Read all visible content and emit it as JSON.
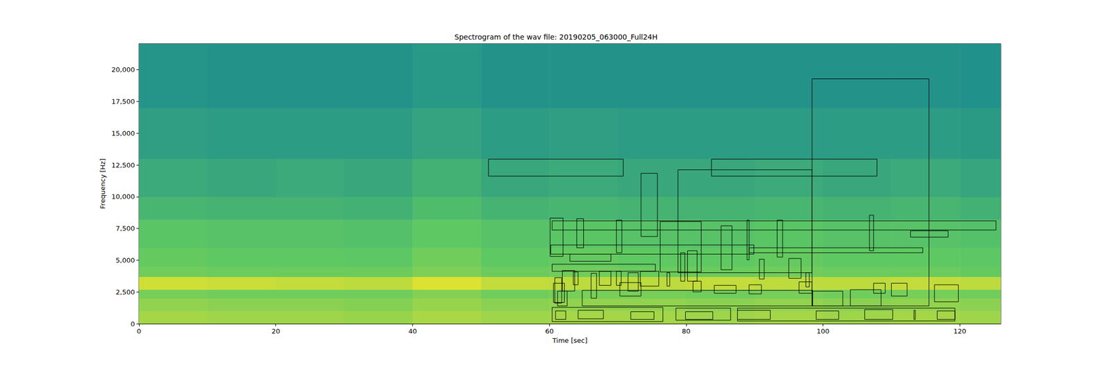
{
  "chart_data": {
    "type": "spectrogram",
    "title": "Spectrogram of the wav file: 20190205_063000_Full24H",
    "x_label": "Time [sec]",
    "y_label": "Frequency [Hz]",
    "xlim": [
      0,
      126
    ],
    "xticks": [
      0,
      20,
      40,
      60,
      80,
      100,
      120
    ],
    "ylim": [
      0,
      22050
    ],
    "yticks": [
      0,
      2500,
      5000,
      7500,
      10000,
      12500,
      15000,
      17500,
      20000
    ],
    "grid": false,
    "spectrogram": {
      "time_edges": [
        0,
        10,
        20,
        30,
        40,
        50,
        60,
        70,
        80,
        90,
        100,
        110,
        120,
        126
      ],
      "freq_edges": [
        0,
        1000,
        2000,
        2700,
        3700,
        4500,
        6000,
        8200,
        10000,
        13000,
        17000,
        22050
      ],
      "level_range": [
        0,
        1
      ],
      "levels": [
        [
          0.86,
          0.85,
          0.85,
          0.84,
          0.87,
          0.85,
          0.86,
          0.86,
          0.85,
          0.86,
          0.85,
          0.86,
          0.85
        ],
        [
          0.83,
          0.82,
          0.82,
          0.81,
          0.84,
          0.82,
          0.83,
          0.83,
          0.82,
          0.83,
          0.82,
          0.83,
          0.82
        ],
        [
          0.79,
          0.78,
          0.78,
          0.78,
          0.81,
          0.78,
          0.79,
          0.79,
          0.78,
          0.79,
          0.78,
          0.79,
          0.78
        ],
        [
          0.93,
          0.92,
          0.91,
          0.9,
          0.95,
          0.91,
          0.9,
          0.9,
          0.91,
          0.9,
          0.9,
          0.91,
          0.9
        ],
        [
          0.78,
          0.77,
          0.77,
          0.77,
          0.8,
          0.77,
          0.78,
          0.77,
          0.77,
          0.78,
          0.77,
          0.77,
          0.76
        ],
        [
          0.76,
          0.75,
          0.75,
          0.74,
          0.78,
          0.75,
          0.76,
          0.75,
          0.75,
          0.76,
          0.75,
          0.75,
          0.74
        ],
        [
          0.73,
          0.72,
          0.72,
          0.71,
          0.75,
          0.72,
          0.73,
          0.72,
          0.72,
          0.73,
          0.72,
          0.72,
          0.71
        ],
        [
          0.66,
          0.65,
          0.65,
          0.64,
          0.69,
          0.65,
          0.66,
          0.65,
          0.65,
          0.66,
          0.65,
          0.66,
          0.64
        ],
        [
          0.61,
          0.6,
          0.61,
          0.6,
          0.64,
          0.6,
          0.61,
          0.6,
          0.6,
          0.61,
          0.6,
          0.61,
          0.59
        ],
        [
          0.56,
          0.55,
          0.55,
          0.55,
          0.58,
          0.55,
          0.56,
          0.55,
          0.55,
          0.55,
          0.55,
          0.55,
          0.54
        ],
        [
          0.52,
          0.51,
          0.51,
          0.51,
          0.53,
          0.51,
          0.51,
          0.51,
          0.51,
          0.51,
          0.51,
          0.51,
          0.5
        ]
      ]
    },
    "boxes": [
      [
        51.1,
        70.8,
        11620,
        12960
      ],
      [
        98.4,
        115.5,
        1400,
        19280
      ],
      [
        83.7,
        107.9,
        11620,
        12960
      ],
      [
        78.8,
        98.4,
        4020,
        12120
      ],
      [
        73.4,
        75.8,
        6870,
        11840
      ],
      [
        60.4,
        125.3,
        7380,
        8100
      ],
      [
        60.1,
        62.0,
        5300,
        8320
      ],
      [
        64.0,
        65.0,
        5980,
        8270
      ],
      [
        69.8,
        70.6,
        5590,
        8160
      ],
      [
        76.2,
        82.2,
        4080,
        8050
      ],
      [
        85.1,
        86.7,
        4250,
        7710
      ],
      [
        88.9,
        89.2,
        5030,
        8160
      ],
      [
        93.3,
        94.1,
        5250,
        8160
      ],
      [
        106.8,
        107.4,
        5750,
        8550
      ],
      [
        112.8,
        118.3,
        6820,
        7320
      ],
      [
        60.2,
        89.9,
        5480,
        6200
      ],
      [
        89.2,
        114.6,
        5590,
        5980
      ],
      [
        63.0,
        69.0,
        4920,
        5480
      ],
      [
        60.4,
        75.5,
        4130,
        4690
      ],
      [
        79.2,
        79.8,
        3350,
        5590
      ],
      [
        80.2,
        81.6,
        3350,
        5750
      ],
      [
        90.7,
        91.4,
        3520,
        5080
      ],
      [
        95.0,
        96.8,
        3580,
        5140
      ],
      [
        61.9,
        63.7,
        2570,
        4190
      ],
      [
        63.5,
        64.2,
        3070,
        4080
      ],
      [
        66.1,
        66.9,
        2010,
        3970
      ],
      [
        67.3,
        69.0,
        3020,
        4130
      ],
      [
        69.8,
        70.5,
        3020,
        4130
      ],
      [
        71.5,
        73.0,
        2570,
        4020
      ],
      [
        73.3,
        76.0,
        2960,
        4130
      ],
      [
        77.2,
        77.6,
        2960,
        4020
      ],
      [
        70.3,
        73.4,
        2180,
        3240
      ],
      [
        60.8,
        61.8,
        1620,
        3630
      ],
      [
        60.6,
        62.2,
        1680,
        3190
      ],
      [
        61.2,
        62.6,
        1400,
        2570
      ],
      [
        64.8,
        98.5,
        1400,
        2630
      ],
      [
        81.0,
        82.2,
        2510,
        3350
      ],
      [
        84.1,
        87.3,
        2400,
        3020
      ],
      [
        89.2,
        91.0,
        2350,
        3070
      ],
      [
        96.5,
        98.4,
        2400,
        3300
      ],
      [
        97.5,
        98.0,
        2900,
        4020
      ],
      [
        98.4,
        102.9,
        1400,
        2570
      ],
      [
        104.0,
        108.5,
        1400,
        2680
      ],
      [
        107.4,
        109.1,
        2400,
        3190
      ],
      [
        110.0,
        112.3,
        2180,
        3190
      ],
      [
        116.3,
        119.8,
        1730,
        3070
      ],
      [
        60.4,
        76.6,
        170,
        1290
      ],
      [
        60.9,
        62.4,
        340,
        1010
      ],
      [
        64.2,
        67.9,
        390,
        1060
      ],
      [
        71.9,
        75.3,
        340,
        950
      ],
      [
        78.5,
        86.5,
        280,
        1230
      ],
      [
        79.9,
        83.9,
        340,
        950
      ],
      [
        87.5,
        119.3,
        220,
        1230
      ],
      [
        87.5,
        92.3,
        340,
        1060
      ],
      [
        99.0,
        102.3,
        340,
        1010
      ],
      [
        106.1,
        110.2,
        340,
        1120
      ],
      [
        113.3,
        113.5,
        340,
        1060
      ],
      [
        116.7,
        119.3,
        340,
        1010
      ]
    ]
  }
}
